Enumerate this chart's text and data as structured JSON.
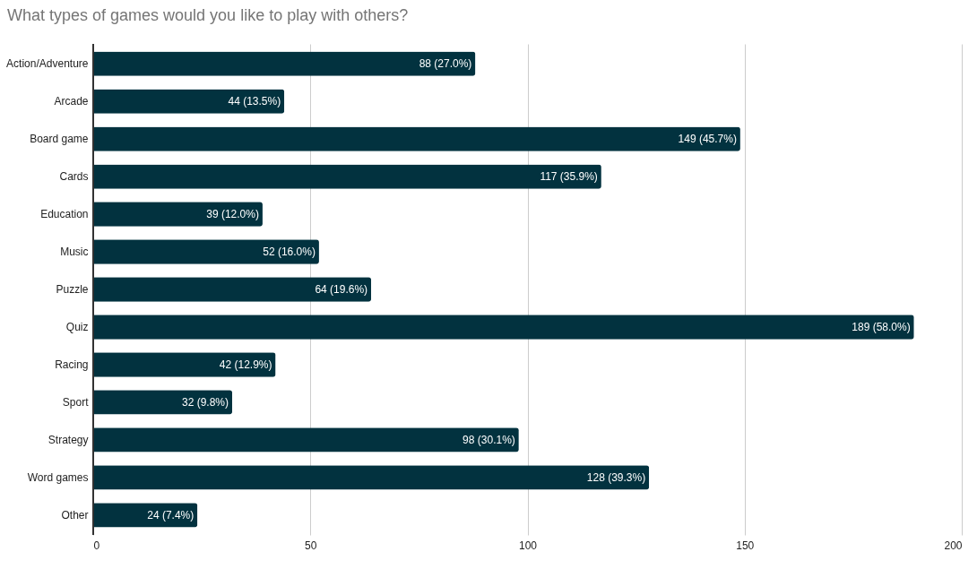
{
  "chart_data": {
    "type": "bar",
    "orientation": "horizontal",
    "title": "What types of games would you like to play with others?",
    "categories": [
      "Action/Adventure",
      "Arcade",
      "Board game",
      "Cards",
      "Education",
      "Music",
      "Puzzle",
      "Quiz",
      "Racing",
      "Sport",
      "Strategy",
      "Word games",
      "Other"
    ],
    "values": [
      88,
      44,
      149,
      117,
      39,
      52,
      64,
      189,
      42,
      32,
      98,
      128,
      24
    ],
    "value_labels": [
      "88 (27.0%)",
      "44 (13.5%)",
      "149 (45.7%)",
      "117 (35.9%)",
      "39 (12.0%)",
      "52 (16.0%)",
      "64 (19.6%)",
      "189 (58.0%)",
      "42 (12.9%)",
      "32 (9.8%)",
      "98 (30.1%)",
      "128 (39.3%)",
      "24 (7.4%)"
    ],
    "color": "#02323f",
    "xlim": [
      0,
      200
    ],
    "xticks": [
      0,
      50,
      100,
      150,
      200
    ],
    "grid": "x"
  }
}
